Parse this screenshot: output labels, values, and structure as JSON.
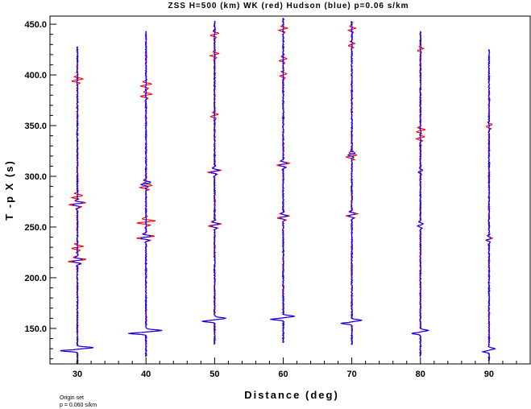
{
  "chart_data": {
    "type": "line",
    "title": "ZSS H=500 (km) WK (red) Hudson (blue) p=0.06 s/km",
    "xlabel": "Distance (deg)",
    "ylabel": "T -p X (s)",
    "xlim": [
      26,
      96
    ],
    "ylim": [
      115,
      458
    ],
    "grid": false,
    "x_ticks": [
      30,
      40,
      50,
      60,
      70,
      80,
      90
    ],
    "x_tick_labels": [
      "30",
      "40",
      "50",
      "60",
      "70",
      "80",
      "90"
    ],
    "y_ticks": [
      150,
      200,
      250,
      300,
      350,
      400,
      450
    ],
    "y_tick_labels": [
      "150.0",
      "200.0",
      "250.0",
      "300.0",
      "350.0",
      "400.0",
      "450.0"
    ],
    "series": [
      {
        "name": "WK",
        "color": "#ff0000"
      },
      {
        "name": "Hudson",
        "color": "#0000ff"
      }
    ],
    "traces": [
      {
        "distance": 30,
        "t_start": 115,
        "t_end": 428,
        "onset": 128,
        "amp": 1.0,
        "red_burst_times": [
          217,
          273,
          395,
          230,
          280
        ],
        "blue_burst_times": [
          217,
          273
        ]
      },
      {
        "distance": 40,
        "t_start": 122,
        "t_end": 443,
        "onset": 145,
        "amp": 1.0,
        "red_burst_times": [
          255,
          240,
          290,
          380,
          390
        ],
        "blue_burst_times": [
          240,
          293
        ]
      },
      {
        "distance": 50,
        "t_start": 134,
        "t_end": 453,
        "onset": 157,
        "amp": 0.7,
        "red_burst_times": [
          252,
          305,
          420,
          360,
          440
        ],
        "blue_burst_times": [
          252,
          305
        ]
      },
      {
        "distance": 60,
        "t_start": 136,
        "t_end": 456,
        "onset": 159,
        "amp": 0.7,
        "red_burst_times": [
          260,
          312,
          400,
          415,
          445
        ],
        "blue_burst_times": [
          260,
          312
        ]
      },
      {
        "distance": 70,
        "t_start": 134,
        "t_end": 453,
        "onset": 155,
        "amp": 0.6,
        "red_burst_times": [
          262,
          320,
          430,
          445
        ],
        "blue_burst_times": [
          262,
          322
        ]
      },
      {
        "distance": 80,
        "t_start": 122,
        "t_end": 443,
        "onset": 145,
        "amp": 0.5,
        "red_burst_times": [
          338,
          345,
          425,
          252
        ],
        "blue_burst_times": [
          305,
          252
        ]
      },
      {
        "distance": 90,
        "t_start": 118,
        "t_end": 425,
        "onset": 127,
        "amp": 0.35,
        "red_burst_times": [
          350,
          238
        ],
        "blue_burst_times": [
          238
        ]
      }
    ]
  },
  "footnote": {
    "line1": "Origin set",
    "line2": "p =  0.060 s/km"
  }
}
